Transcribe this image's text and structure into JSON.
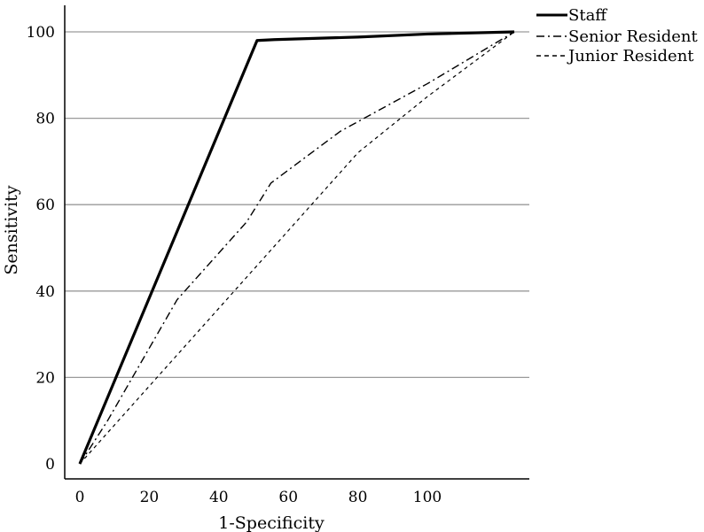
{
  "chart_data": {
    "type": "line",
    "title": "",
    "xlabel": "1-Specificity",
    "ylabel": "Sensitivity",
    "xlim": [
      0,
      120
    ],
    "ylim": [
      0,
      100
    ],
    "x_ticks": [
      0,
      20,
      40,
      60,
      80,
      100
    ],
    "y_ticks": [
      0,
      20,
      40,
      60,
      80,
      100
    ],
    "grid": "horizontal",
    "legend_position": "top-right",
    "series": [
      {
        "name": "Staff",
        "style": "solid",
        "stroke_color": "#000000",
        "points": [
          [
            0,
            0
          ],
          [
            51,
            98
          ],
          [
            56,
            98.2
          ],
          [
            80,
            98.8
          ],
          [
            100,
            99.5
          ],
          [
            125,
            100
          ]
        ]
      },
      {
        "name": "Senior Resident",
        "style": "dash-dot",
        "stroke_color": "#000000",
        "points": [
          [
            0,
            0
          ],
          [
            8,
            10
          ],
          [
            18,
            24
          ],
          [
            28,
            38
          ],
          [
            38,
            47
          ],
          [
            48,
            56
          ],
          [
            55,
            65
          ],
          [
            75,
            77
          ],
          [
            100,
            88
          ],
          [
            125,
            100
          ]
        ]
      },
      {
        "name": "Junior Resident",
        "style": "dashed",
        "stroke_color": "#000000",
        "points": [
          [
            0,
            0
          ],
          [
            20,
            18
          ],
          [
            40,
            36
          ],
          [
            60,
            54
          ],
          [
            80,
            72
          ],
          [
            100,
            85
          ],
          [
            125,
            100
          ]
        ]
      }
    ]
  }
}
